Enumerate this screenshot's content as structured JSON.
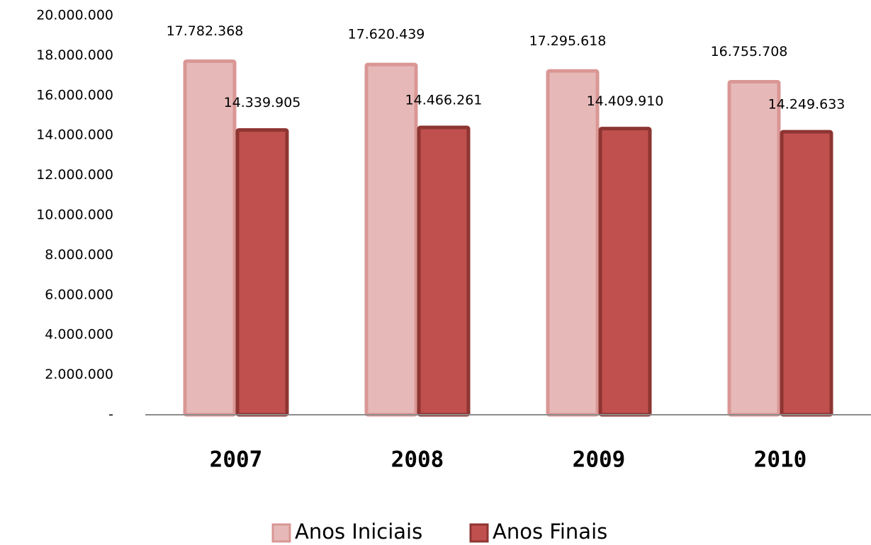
{
  "chart_data": {
    "type": "bar",
    "categories": [
      "2007",
      "2008",
      "2009",
      "2010"
    ],
    "series": [
      {
        "name": "Anos Iniciais",
        "color": "#e6b9b8",
        "stroke": "#d99795",
        "values": [
          17782368,
          17620439,
          17295618,
          16755708
        ],
        "value_labels": [
          "17.782.368",
          "17.620.439",
          "17.295.618",
          "16.755.708"
        ]
      },
      {
        "name": "Anos Finais",
        "color": "#c0504d",
        "stroke": "#8e3532",
        "values": [
          14339905,
          14466261,
          14409910,
          14249633
        ],
        "value_labels": [
          "14.339.905",
          "14.466.261",
          "14.409.910",
          "14.249.633"
        ]
      }
    ],
    "ylim": [
      0,
      20000000
    ],
    "yticks": [
      {
        "value": 0,
        "label": "-"
      },
      {
        "value": 2000000,
        "label": "2.000.000"
      },
      {
        "value": 4000000,
        "label": "4.000.000"
      },
      {
        "value": 6000000,
        "label": "6.000.000"
      },
      {
        "value": 8000000,
        "label": "8.000.000"
      },
      {
        "value": 10000000,
        "label": "10.000.000"
      },
      {
        "value": 12000000,
        "label": "12.000.000"
      },
      {
        "value": 14000000,
        "label": "14.000.000"
      },
      {
        "value": 16000000,
        "label": "16.000.000"
      },
      {
        "value": 18000000,
        "label": "18.000.000"
      },
      {
        "value": 20000000,
        "label": "20.000.000"
      }
    ],
    "grid": false,
    "legend": "bottom"
  }
}
